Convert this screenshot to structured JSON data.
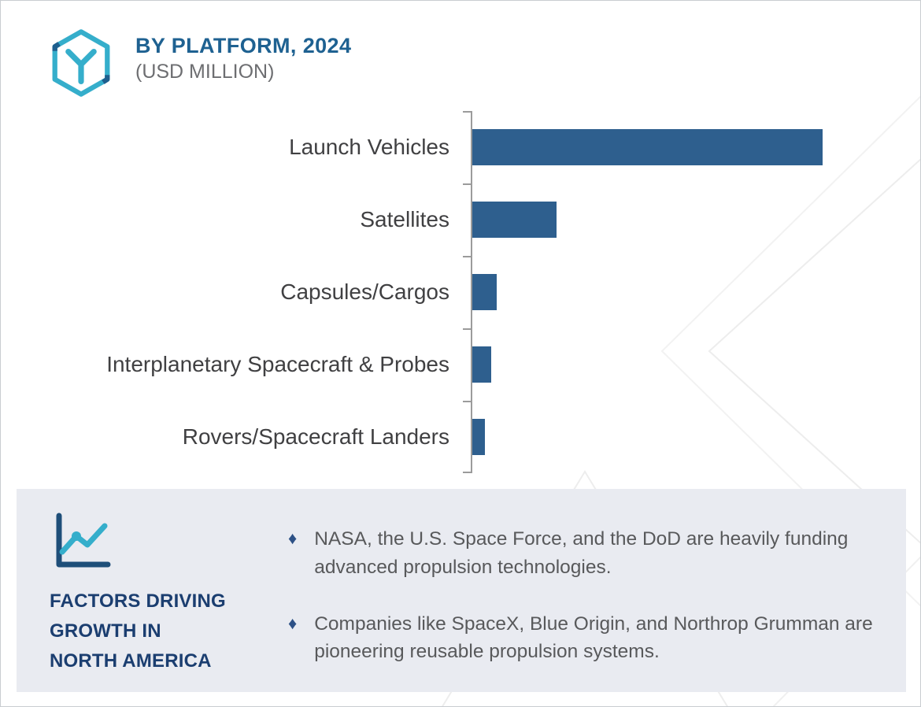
{
  "header": {
    "title": "BY PLATFORM, 2024",
    "subtitle": "(USD MILLION)",
    "logo_icon": "hexagon-y-logo"
  },
  "chart_data": {
    "type": "bar",
    "orientation": "horizontal",
    "title": "BY PLATFORM, 2024",
    "subtitle": "(USD MILLION)",
    "categories": [
      "Launch Vehicles",
      "Satellites",
      "Capsules/Cargos",
      "Interplanetary Spacecraft & Probes",
      "Rovers/Spacecraft Landers"
    ],
    "values": [
      100,
      24,
      7,
      5.5,
      3.5
    ],
    "value_note": "No numeric axis or data labels shown; values estimated as percent of the largest bar.",
    "xlabel": "",
    "ylabel": "",
    "grid": false,
    "legend": false,
    "data_labels": false,
    "bar_color": "#2e5f8e"
  },
  "factors_panel": {
    "icon": "line-chart-icon",
    "heading_lines": [
      "FACTORS DRIVING",
      "GROWTH IN",
      "NORTH AMERICA"
    ],
    "bullet_marker": "♦",
    "bullets": [
      "NASA, the U.S. Space Force, and the DoD are heavily funding advanced propulsion technologies.",
      "Companies like SpaceX, Blue Origin, and Northrop Grumman are pioneering reusable propulsion systems."
    ]
  },
  "colors": {
    "bar": "#2e5f8e",
    "title": "#1e6191",
    "subtitle": "#6d6e71",
    "axis": "#9b9b9b",
    "label_text": "#404042",
    "panel_bg": "#e9ebf1",
    "heading": "#1b3e70",
    "bullet_diamond": "#2d5186",
    "body_text": "#58595b",
    "accent_teal": "#35aecb",
    "watermark": "#ededed"
  }
}
